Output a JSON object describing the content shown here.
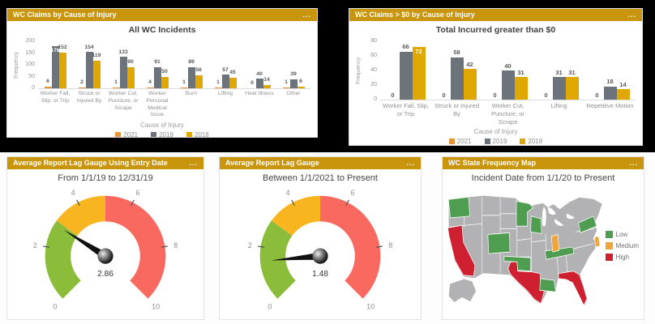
{
  "colors": {
    "header_bg": "#C8950C",
    "header_text": "#FFFFFF",
    "top_background": "#000000",
    "bottom_background": "#FFFFFF",
    "panel_border": "#E2E2E2",
    "title_text": "#404040",
    "axis_text": "#8F8F8F",
    "series_2021": "#E8923A",
    "series_2019": "#6C737A",
    "series_2018": "#DFA700",
    "gauge_green": "#8BBD3B",
    "gauge_yellow": "#F8B51F",
    "gauge_red": "#F9695F",
    "map_low": "#4E9D50",
    "map_medium": "#EFA43C",
    "map_high": "#CE2030",
    "map_neutral": "#B2B2B5"
  },
  "panels": {
    "all_wc": {
      "header": "WC Claims by Cause of Injury",
      "menu": "..."
    },
    "gt0": {
      "header": "WC Claims > $0 by Cause of Injury",
      "menu": "..."
    },
    "gauge_entry": {
      "header": "Average Report Lag Gauge Using Entry Date",
      "menu": "...",
      "subtitle": "From 1/1/19 to 12/31/19"
    },
    "gauge_current": {
      "header": "Average Report Lag Gauge",
      "menu": "...",
      "subtitle": "Between 1/1/2021 to Present"
    },
    "state_map": {
      "header": "WC State Frequency Map",
      "menu": "...",
      "subtitle": "Incident Date from 1/1/20 to Present"
    }
  },
  "chart_data": [
    {
      "id": "all_wc_incidents",
      "type": "bar",
      "title": "All WC Incidents",
      "xlabel": "Cause of Injury",
      "ylabel": "Frequency",
      "ylim": [
        0,
        200
      ],
      "yticks": [
        0,
        50,
        100,
        150,
        200
      ],
      "grid": false,
      "legend_position": "bottom",
      "categories": [
        "Worker Fall, Slip, or Trip",
        "Struck or Injured By",
        "Worker Cut, Puncture, or Scrape",
        "Worker Personal Medical Issue",
        "Burn",
        "Lifting",
        "Heat Illness",
        "Other"
      ],
      "series": [
        {
          "name": "2021",
          "color": "#E8923A",
          "values": [
            6,
            2,
            1,
            4,
            1,
            1,
            0,
            1
          ]
        },
        {
          "name": "2019",
          "color": "#6C737A",
          "values": [
            178,
            154,
            133,
            91,
            89,
            57,
            40,
            39
          ]
        },
        {
          "name": "2018",
          "color": "#DFA700",
          "values": [
            152,
            119,
            90,
            50,
            56,
            45,
            14,
            6
          ]
        }
      ]
    },
    {
      "id": "total_incurred_gt0",
      "type": "bar",
      "title": "Total Incurred greater than $0",
      "xlabel": "Cause of Injury",
      "ylabel": "Frequency",
      "ylim": [
        0,
        80
      ],
      "yticks": [
        0,
        20,
        40,
        60,
        80
      ],
      "grid": false,
      "legend_position": "bottom",
      "categories": [
        "Worker Fall, Slip, or Trip",
        "Struck or Injured By",
        "Worker Cut, Puncture, or Scrape",
        "Lifting",
        "Repetitive Motion"
      ],
      "series": [
        {
          "name": "2021",
          "color": "#E8923A",
          "values": [
            0,
            0,
            0,
            0,
            0
          ]
        },
        {
          "name": "2019",
          "color": "#6C737A",
          "values": [
            66,
            58,
            40,
            31,
            18
          ]
        },
        {
          "name": "2018",
          "color": "#DFA700",
          "values": [
            72,
            42,
            31,
            31,
            14
          ]
        }
      ]
    },
    {
      "id": "report_lag_entry_date",
      "type": "gauge",
      "title": "From 1/1/19 to 12/31/19",
      "value": 2.86,
      "min": 0,
      "max": 10,
      "tick_labels": [
        0,
        2,
        4,
        6,
        8,
        10
      ],
      "zones": [
        {
          "from": 0,
          "to": 3,
          "color": "#8BBD3B"
        },
        {
          "from": 3,
          "to": 5,
          "color": "#F8B51F"
        },
        {
          "from": 5,
          "to": 10,
          "color": "#F9695F"
        }
      ]
    },
    {
      "id": "report_lag_current",
      "type": "gauge",
      "title": "Between 1/1/2021 to Present",
      "value": 1.48,
      "min": 0,
      "max": 10,
      "tick_labels": [
        0,
        2,
        4,
        6,
        8,
        10
      ],
      "zones": [
        {
          "from": 0,
          "to": 3,
          "color": "#8BBD3B"
        },
        {
          "from": 3,
          "to": 5,
          "color": "#F8B51F"
        },
        {
          "from": 5,
          "to": 10,
          "color": "#F9695F"
        }
      ]
    },
    {
      "id": "wc_state_frequency",
      "type": "choropleth",
      "title": "Incident Date from 1/1/20 to Present",
      "legend": [
        {
          "label": "Low",
          "color": "#4E9D50"
        },
        {
          "label": "Medium",
          "color": "#EFA43C"
        },
        {
          "label": "High",
          "color": "#CE2030"
        }
      ],
      "low_states": [
        "WA",
        "MN",
        "WI",
        "CO",
        "OK",
        "LA",
        "TN",
        "NY"
      ],
      "medium_states": [
        "IN",
        "NJ"
      ],
      "high_states": [
        "CA",
        "TX",
        "FL"
      ],
      "neutral_color": "#B2B2B5"
    }
  ]
}
